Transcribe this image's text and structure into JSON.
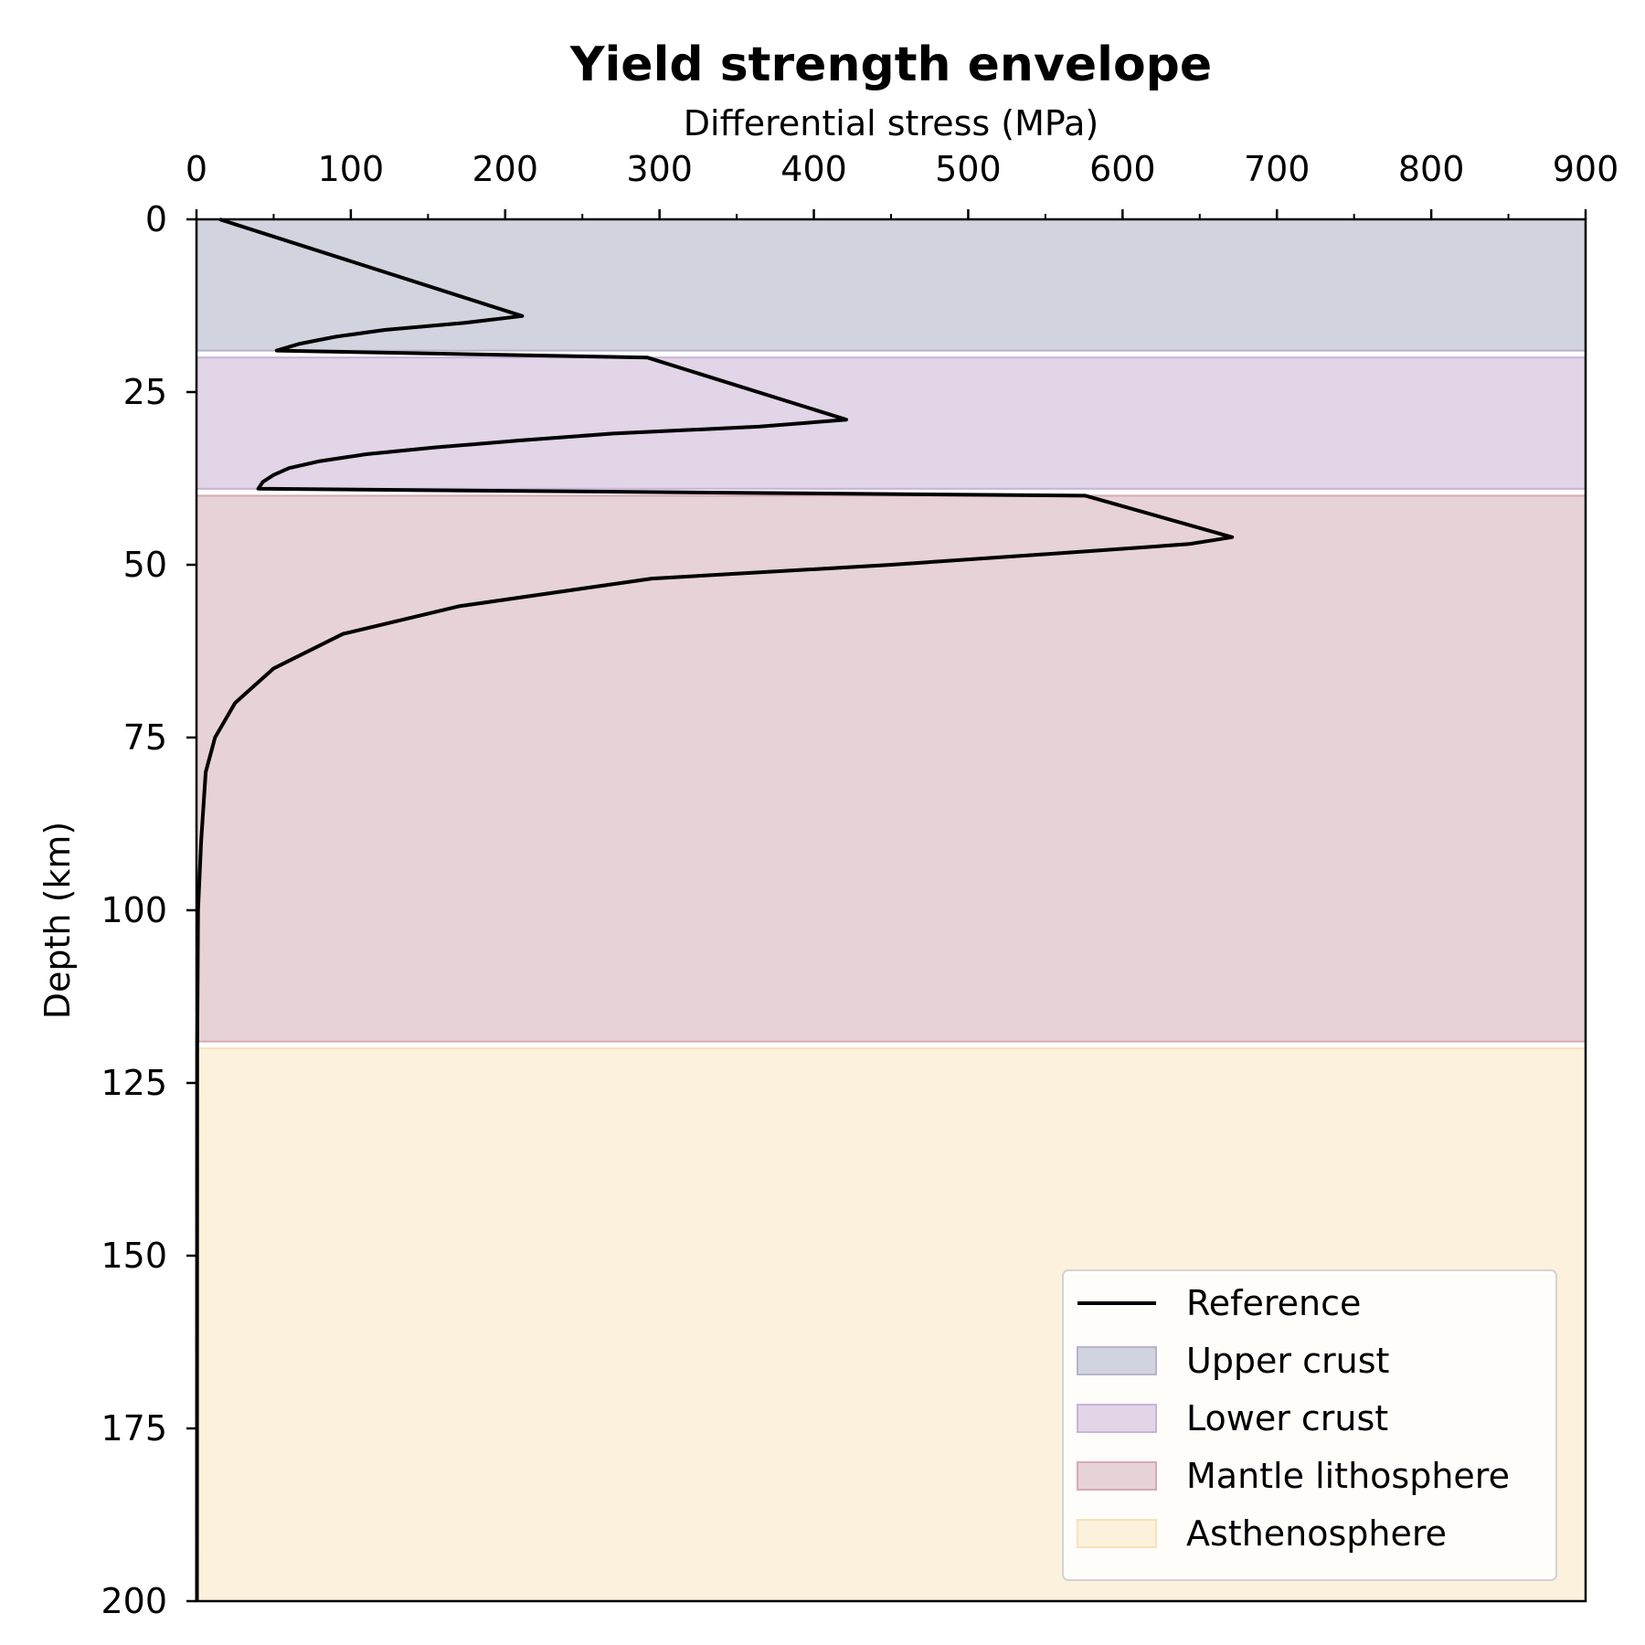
{
  "chart_data": {
    "type": "line",
    "title": "Yield strength envelope",
    "xlabel": "Differential stress (MPa)",
    "ylabel": "Depth (km)",
    "xlim": [
      0,
      900
    ],
    "ylim": [
      0,
      200
    ],
    "y_inverted": true,
    "x_axis_position": "top",
    "grid": false,
    "x_ticks": [
      0,
      100,
      200,
      300,
      400,
      500,
      600,
      700,
      800,
      900
    ],
    "y_ticks": [
      0,
      25,
      50,
      75,
      100,
      125,
      150,
      175,
      200
    ],
    "legend_position": "lower-right",
    "layers": [
      {
        "name": "Upper crust",
        "top": 0,
        "bottom": 19,
        "color": "#d1d4de",
        "edge": "#b8b2cc"
      },
      {
        "name": "Lower crust",
        "top": 20,
        "bottom": 39,
        "color": "#e1d5e7",
        "edge": "#c8b4d8"
      },
      {
        "name": "Mantle lithosphere",
        "top": 40,
        "bottom": 119,
        "color": "#e7d2d7",
        "edge": "#d6aab4"
      },
      {
        "name": "Asthenosphere",
        "top": 120,
        "bottom": 200,
        "color": "#fcf1dd",
        "edge": "#f6e2b8"
      }
    ],
    "series": [
      {
        "name": "Reference",
        "color": "#000000",
        "points": [
          [
            15,
            0
          ],
          [
            211,
            14
          ],
          [
            173,
            15
          ],
          [
            122,
            16
          ],
          [
            90,
            17
          ],
          [
            67,
            18
          ],
          [
            52,
            19
          ],
          [
            292,
            20
          ],
          [
            421,
            29
          ],
          [
            365,
            30
          ],
          [
            270,
            31
          ],
          [
            210,
            32
          ],
          [
            155,
            33
          ],
          [
            110,
            34
          ],
          [
            80,
            35
          ],
          [
            60,
            36
          ],
          [
            50,
            37
          ],
          [
            43,
            38
          ],
          [
            40,
            39
          ],
          [
            576,
            40
          ],
          [
            671,
            46
          ],
          [
            643,
            47
          ],
          [
            580,
            48
          ],
          [
            450,
            50
          ],
          [
            295,
            52
          ],
          [
            170,
            56
          ],
          [
            95,
            60
          ],
          [
            50,
            65
          ],
          [
            25,
            70
          ],
          [
            12,
            75
          ],
          [
            6,
            80
          ],
          [
            3,
            90
          ],
          [
            1,
            100
          ],
          [
            0.5,
            120
          ],
          [
            0.3,
            200
          ]
        ]
      }
    ]
  }
}
